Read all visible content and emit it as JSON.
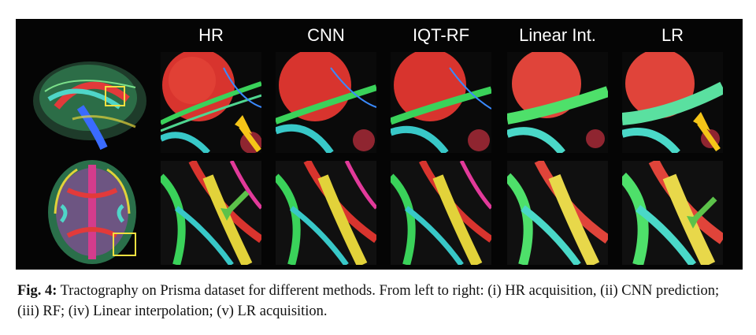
{
  "figure": {
    "columns": [
      {
        "label": "HR"
      },
      {
        "label": "CNN"
      },
      {
        "label": "IQT-RF"
      },
      {
        "label": "Linear Int."
      },
      {
        "label": "LR"
      }
    ],
    "rows": [
      "sagittal",
      "axial"
    ],
    "arrow_colors": {
      "top_row": "#f5c518",
      "bottom_row": "#5cc24a"
    },
    "roi_box_color": "#f0e040"
  },
  "caption": {
    "label": "Fig. 4:",
    "text": " Tractography on Prisma dataset for different methods. From left to right: (i) HR acquisition, (ii) CNN prediction; (iii) RF; (iv) Linear interpolation; (v) LR acquisition."
  }
}
